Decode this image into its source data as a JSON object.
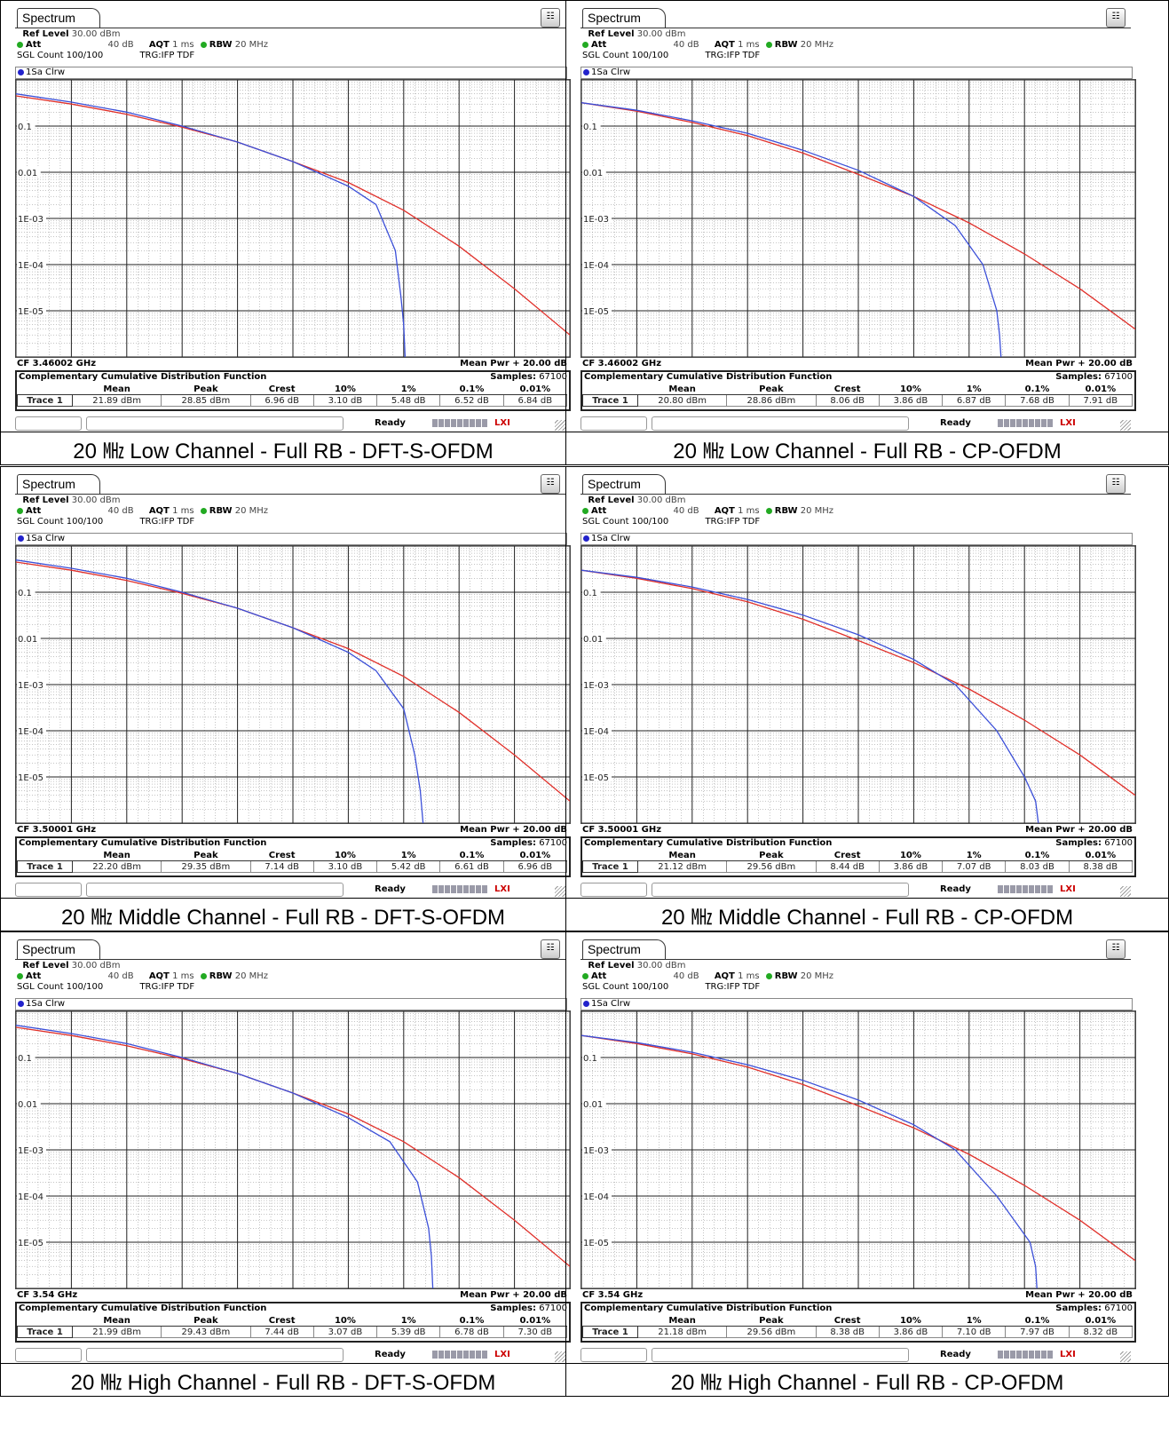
{
  "common": {
    "tab_label": "Spectrum",
    "ref_level_label": "Ref Level",
    "ref_level_value": "30.00 dBm",
    "att_label": "Att",
    "att_value": "40 dB",
    "aqt_label": "AQT",
    "aqt_value": "1 ms",
    "rbw_label": "RBW",
    "rbw_value": "20 MHz",
    "sgl_count": "SGL Count 100/100",
    "trigger": "TRG:IFP TDF",
    "trace_mode": "1Sa Clrw",
    "mean_pwr_label": "Mean Pwr + 20.00 dB",
    "ccdf_title": "Complementary Cumulative Distribution Function",
    "samples_label": "Samples:",
    "samples_value": "67100",
    "row_label": "Trace 1",
    "ready_label": "Ready",
    "lxi_label": "LXI",
    "col_headers": [
      "Mean",
      "Peak",
      "Crest",
      "10%",
      "1%",
      "0.1%",
      "0.01%"
    ],
    "colors": {
      "blue_trace": "#3b4fd8",
      "red_trace": "#e0302a",
      "grid": "#222222",
      "minor_grid": "#8a8a8a"
    }
  },
  "panels": [
    {
      "caption": "20 ㎒ Low Channel - Full RB - DFT-S-OFDM",
      "cf": "CF 3.46002 GHz",
      "stats": [
        "21.89 dBm",
        "28.85 dBm",
        "6.96 dB",
        "3.10 dB",
        "5.48 dB",
        "6.52 dB",
        "6.84 dB"
      ]
    },
    {
      "caption": "20 ㎒ Low Channel - Full RB - CP-OFDM",
      "cf": "CF 3.46002 GHz",
      "stats": [
        "20.80 dBm",
        "28.86 dBm",
        "8.06 dB",
        "3.86 dB",
        "6.87 dB",
        "7.68 dB",
        "7.91 dB"
      ]
    },
    {
      "caption": "20 ㎒ Middle Channel - Full RB - DFT-S-OFDM",
      "cf": "CF 3.50001 GHz",
      "stats": [
        "22.20 dBm",
        "29.35 dBm",
        "7.14 dB",
        "3.10 dB",
        "5.42 dB",
        "6.61 dB",
        "6.96 dB"
      ]
    },
    {
      "caption": "20 ㎒ Middle Channel - Full RB - CP-OFDM",
      "cf": "CF 3.50001 GHz",
      "stats": [
        "21.12 dBm",
        "29.56 dBm",
        "8.44 dB",
        "3.86 dB",
        "7.07 dB",
        "8.03 dB",
        "8.38 dB"
      ]
    },
    {
      "caption": "20 ㎒ High Channel - Full RB - DFT-S-OFDM",
      "cf": "CF 3.54 GHz",
      "stats": [
        "21.99 dBm",
        "29.43 dBm",
        "7.44 dB",
        "3.07 dB",
        "5.39 dB",
        "6.78 dB",
        "7.30 dB"
      ]
    },
    {
      "caption": "20 ㎒ High Channel - Full RB - CP-OFDM",
      "cf": "CF 3.54 GHz",
      "stats": [
        "21.18 dBm",
        "29.56 dBm",
        "8.38 dB",
        "3.86 dB",
        "7.10 dB",
        "7.97 dB",
        "8.32 dB"
      ]
    }
  ],
  "chart_data": [
    {
      "type": "line",
      "ylog": true,
      "xlim": [
        0,
        20
      ],
      "ylim": [
        1e-06,
        1
      ],
      "ytick_labels": [
        "0.1",
        "0.01",
        "1E-03",
        "1E-04",
        "1E-05"
      ],
      "series": [
        {
          "color": "#3b4fd8",
          "x": [
            0,
            2,
            4,
            6,
            8,
            10,
            12,
            13,
            13.7,
            13.9,
            14,
            14.05
          ],
          "y": [
            0.5,
            0.33,
            0.2,
            0.1,
            0.045,
            0.017,
            0.005,
            0.002,
            0.0002,
            2e-05,
            5e-06,
            1e-06
          ]
        },
        {
          "color": "#e0302a",
          "x": [
            0,
            2,
            4,
            6,
            8,
            10,
            12,
            14,
            16,
            18,
            20,
            21.5
          ],
          "y": [
            0.45,
            0.3,
            0.18,
            0.095,
            0.045,
            0.017,
            0.006,
            0.0015,
            0.00025,
            3e-05,
            3e-06,
            1e-06
          ]
        }
      ]
    },
    {
      "type": "line",
      "ylog": true,
      "xlim": [
        0,
        20
      ],
      "ylim": [
        1e-06,
        1
      ],
      "ytick_labels": [
        "0.1",
        "0.01",
        "1E-03",
        "1E-04",
        "1E-05"
      ],
      "series": [
        {
          "color": "#3b4fd8",
          "x": [
            0,
            2,
            4,
            6,
            8,
            10,
            12,
            13.5,
            14.5,
            15,
            15.1,
            15.15
          ],
          "y": [
            0.32,
            0.22,
            0.13,
            0.07,
            0.03,
            0.011,
            0.003,
            0.0007,
            0.0001,
            1e-05,
            3e-06,
            1e-06
          ]
        },
        {
          "color": "#e0302a",
          "x": [
            0,
            2,
            4,
            6,
            8,
            10,
            12,
            14,
            16,
            18,
            20,
            22.8
          ],
          "y": [
            0.32,
            0.21,
            0.12,
            0.062,
            0.026,
            0.009,
            0.003,
            0.0008,
            0.00017,
            3e-05,
            4e-06,
            1e-06
          ]
        }
      ]
    },
    {
      "type": "line",
      "ylog": true,
      "xlim": [
        0,
        20
      ],
      "ylim": [
        1e-06,
        1
      ],
      "ytick_labels": [
        "0.1",
        "0.01",
        "1E-03",
        "1E-04",
        "1E-05"
      ],
      "series": [
        {
          "color": "#3b4fd8",
          "x": [
            0,
            2,
            4,
            6,
            8,
            10,
            12,
            13,
            14,
            14.4,
            14.6,
            14.7
          ],
          "y": [
            0.5,
            0.33,
            0.2,
            0.1,
            0.045,
            0.017,
            0.005,
            0.002,
            0.0003,
            3e-05,
            5e-06,
            1e-06
          ]
        },
        {
          "color": "#e0302a",
          "x": [
            0,
            2,
            4,
            6,
            8,
            10,
            12,
            14,
            16,
            18,
            20,
            21.5
          ],
          "y": [
            0.45,
            0.3,
            0.18,
            0.095,
            0.045,
            0.017,
            0.006,
            0.0015,
            0.00025,
            3e-05,
            3e-06,
            1e-06
          ]
        }
      ]
    },
    {
      "type": "line",
      "ylog": true,
      "xlim": [
        0,
        20
      ],
      "ylim": [
        1e-06,
        1
      ],
      "ytick_labels": [
        "0.1",
        "0.01",
        "1E-03",
        "1E-04",
        "1E-05"
      ],
      "series": [
        {
          "color": "#3b4fd8",
          "x": [
            0,
            2,
            4,
            6,
            8,
            10,
            12,
            13.5,
            15,
            16,
            16.4,
            16.5
          ],
          "y": [
            0.3,
            0.21,
            0.13,
            0.07,
            0.032,
            0.012,
            0.0035,
            0.001,
            0.0001,
            1e-05,
            3e-06,
            1e-06
          ]
        },
        {
          "color": "#e0302a",
          "x": [
            0,
            2,
            4,
            6,
            8,
            10,
            12,
            14,
            16,
            18,
            20,
            22.8
          ],
          "y": [
            0.3,
            0.2,
            0.12,
            0.062,
            0.026,
            0.009,
            0.003,
            0.0008,
            0.00017,
            3e-05,
            4e-06,
            1e-06
          ]
        }
      ]
    },
    {
      "type": "line",
      "ylog": true,
      "xlim": [
        0,
        20
      ],
      "ylim": [
        1e-06,
        1
      ],
      "ytick_labels": [
        "0.1",
        "0.01",
        "1E-03",
        "1E-04",
        "1E-05"
      ],
      "series": [
        {
          "color": "#3b4fd8",
          "x": [
            0,
            2,
            4,
            6,
            8,
            10,
            12,
            13.5,
            14.5,
            14.9,
            15,
            15.05
          ],
          "y": [
            0.5,
            0.33,
            0.2,
            0.1,
            0.045,
            0.017,
            0.005,
            0.0015,
            0.0002,
            2e-05,
            5e-06,
            1e-06
          ]
        },
        {
          "color": "#e0302a",
          "x": [
            0,
            2,
            4,
            6,
            8,
            10,
            12,
            14,
            16,
            18,
            20,
            21.5
          ],
          "y": [
            0.45,
            0.3,
            0.18,
            0.095,
            0.045,
            0.017,
            0.006,
            0.0015,
            0.00025,
            3e-05,
            3e-06,
            1e-06
          ]
        }
      ]
    },
    {
      "type": "line",
      "ylog": true,
      "xlim": [
        0,
        20
      ],
      "ylim": [
        1e-06,
        1
      ],
      "ytick_labels": [
        "0.1",
        "0.01",
        "1E-03",
        "1E-04",
        "1E-05"
      ],
      "series": [
        {
          "color": "#3b4fd8",
          "x": [
            0,
            2,
            4,
            6,
            8,
            10,
            12,
            13.5,
            15,
            16.2,
            16.4,
            16.45
          ],
          "y": [
            0.3,
            0.21,
            0.13,
            0.07,
            0.032,
            0.012,
            0.0035,
            0.001,
            0.0001,
            1e-05,
            3e-06,
            1e-06
          ]
        },
        {
          "color": "#e0302a",
          "x": [
            0,
            2,
            4,
            6,
            8,
            10,
            12,
            14,
            16,
            18,
            20,
            22.8
          ],
          "y": [
            0.3,
            0.2,
            0.12,
            0.062,
            0.026,
            0.009,
            0.003,
            0.0008,
            0.00017,
            3e-05,
            4e-06,
            1e-06
          ]
        }
      ]
    }
  ]
}
